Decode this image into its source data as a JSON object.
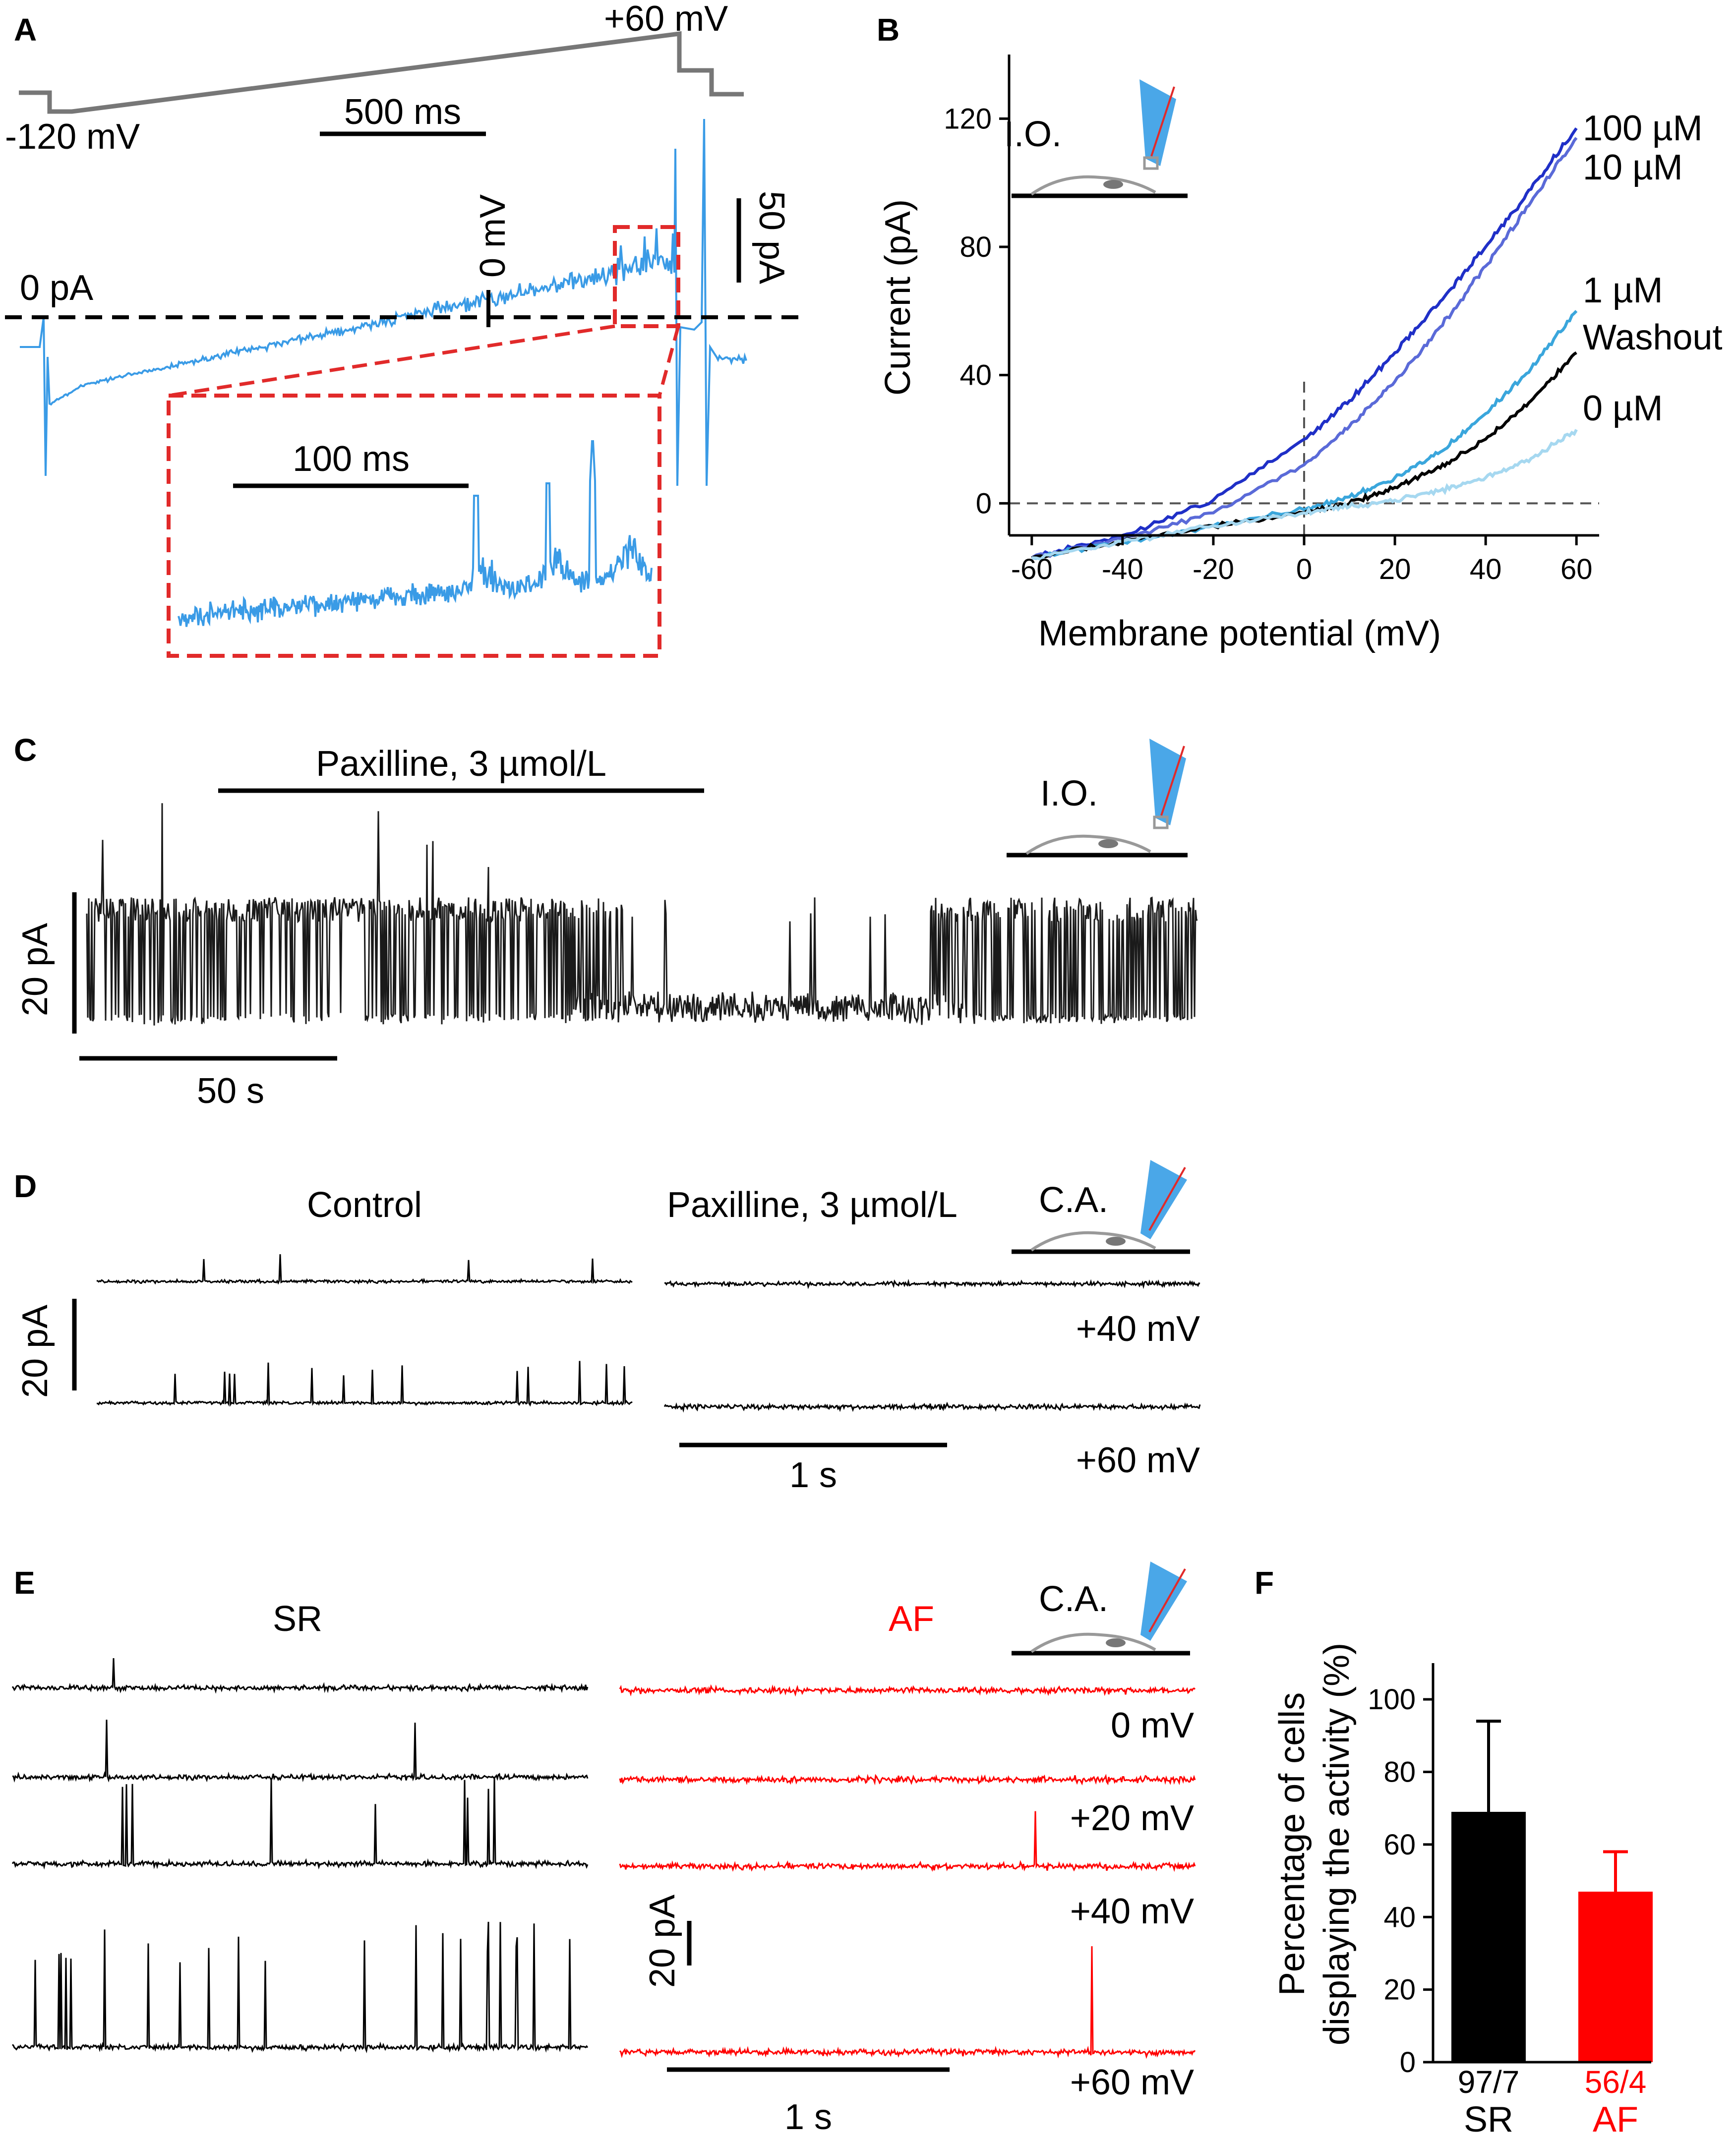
{
  "figure": {
    "panel_labels": [
      "A",
      "B",
      "C",
      "D",
      "E",
      "F"
    ],
    "colors": {
      "blue_trace": "#3a9be6",
      "red_box": "#e12a2a",
      "black": "#000000",
      "red": "#ff0000",
      "gray": "#777777",
      "pipette_blue": "#4aa7e8"
    }
  },
  "panel_a": {
    "protocol_high": "+60 mV",
    "protocol_low": "-120 mV",
    "time_bar": "500 ms",
    "current_scale": "50 pA",
    "zero_current": "0 pA",
    "zero_voltage": "0 mV",
    "inset_time_bar": "100 ms"
  },
  "panel_b": {
    "inset_label": "I.O.",
    "curve_labels": [
      "100 µM",
      "10 µM",
      "1 µM",
      "Washout",
      "0 µM"
    ]
  },
  "chart_data": {
    "type": "line",
    "title": "",
    "xlabel": "Membrane potential (mV)",
    "ylabel": "Current (pA)",
    "xlim": [
      -65,
      65
    ],
    "ylim": [
      -10,
      140
    ],
    "xticks": [
      -60,
      -40,
      -20,
      0,
      20,
      40,
      60
    ],
    "yticks": [
      0,
      40,
      80,
      120
    ],
    "x": [
      -60,
      -40,
      -20,
      0,
      10,
      20,
      30,
      40,
      50,
      60
    ],
    "series": [
      {
        "name": "100 µM",
        "color": "#1f2fc7",
        "values": [
          -17,
          -10,
          1,
          20,
          32,
          47,
          63,
          80,
          98,
          117
        ]
      },
      {
        "name": "10 µM",
        "color": "#5a6ad8",
        "values": [
          -17,
          -11,
          -3,
          12,
          24,
          38,
          55,
          74,
          94,
          114
        ]
      },
      {
        "name": "1 µM",
        "color": "#3aa6dc",
        "values": [
          -17,
          -12,
          -7,
          -2,
          2,
          8,
          16,
          28,
          42,
          60
        ]
      },
      {
        "name": "Washout",
        "color": "#000000",
        "values": [
          -17,
          -12,
          -7,
          -3,
          0,
          5,
          11,
          20,
          32,
          47
        ]
      },
      {
        "name": "0 µM",
        "color": "#a6d8f0",
        "values": [
          -17,
          -12,
          -7,
          -3,
          -1,
          1,
          4,
          8,
          14,
          23
        ]
      }
    ]
  },
  "panel_c": {
    "drug_bar": "Paxilline, 3 µmol/L",
    "inset_label": "I.O.",
    "amp_scale": "20 pA",
    "time_bar": "50 s"
  },
  "panel_d": {
    "control": "Control",
    "drug": "Paxilline, 3 µmol/L",
    "inset_label": "C.A.",
    "amp_scale": "20 pA",
    "voltage_1": "+40 mV",
    "voltage_2": "+60 mV",
    "time_bar": "1 s"
  },
  "panel_e": {
    "sr": "SR",
    "af": "AF",
    "inset_label": "C.A.",
    "voltages": [
      "0 mV",
      "+20 mV",
      "+40 mV",
      "+60 mV"
    ],
    "amp_scale": "20 pA",
    "time_bar": "1 s"
  },
  "chart_data_f": {
    "type": "bar",
    "ylabel_line1": "Percentage of cells",
    "ylabel_line2": "displaying the activity (%)",
    "ylim": [
      0,
      110
    ],
    "yticks": [
      0,
      20,
      40,
      60,
      80,
      100
    ],
    "categories": [
      "SR",
      "AF"
    ],
    "values": [
      69,
      47
    ],
    "errors": [
      25,
      11
    ],
    "counts": [
      "97/7",
      "56/4"
    ],
    "colors": [
      "#000000",
      "#ff0000"
    ]
  }
}
